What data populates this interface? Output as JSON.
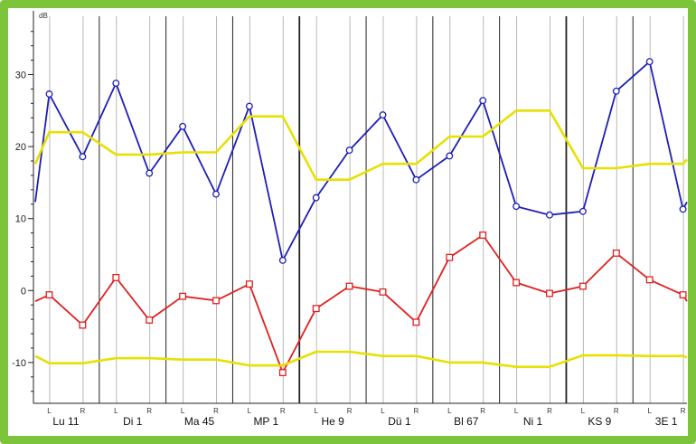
{
  "chart_data": {
    "type": "line",
    "title": "",
    "xlabel": "",
    "ylabel": "dB",
    "ylim": [
      -16,
      36
    ],
    "yticks": [
      -10,
      0,
      10,
      20,
      30
    ],
    "grid": true,
    "legend": "none",
    "categories": [
      "Lu 11",
      "Di 1",
      "Ma 45",
      "MP 1",
      "He 9",
      "Dü 1",
      "Bl 67",
      "Ni 1",
      "KS 9",
      "3E 1"
    ],
    "sub_labels": [
      "L",
      "R"
    ],
    "x": [
      "Lu 11 L",
      "Lu 11 R",
      "Di 1 L",
      "Di 1 R",
      "Ma 45 L",
      "Ma 45 R",
      "MP 1 L",
      "MP 1 R",
      "He 9 L",
      "He 9 R",
      "Dü 1 L",
      "Dü 1 R",
      "Bl 67 L",
      "Bl 67 R",
      "Ni 1 L",
      "Ni 1 R",
      "KS 9 L",
      "KS 9 R",
      "3E 1 L",
      "3E 1 R"
    ],
    "series": [
      {
        "color": "#1f1fb8",
        "marker": "circle",
        "values": [
          27.3,
          18.6,
          28.8,
          16.3,
          22.8,
          13.4,
          25.6,
          4.2,
          12.9,
          19.5,
          24.4,
          15.4,
          18.7,
          26.4,
          11.7,
          10.5,
          11.0,
          27.7,
          31.8,
          11.3
        ],
        "start": 12.3,
        "end": 12.3
      },
      {
        "color": "#e02020",
        "marker": "square",
        "values": [
          -0.6,
          -4.8,
          1.8,
          -4.1,
          -0.8,
          -1.4,
          0.9,
          -11.4,
          -2.5,
          0.6,
          -0.2,
          -4.4,
          4.6,
          7.7,
          1.1,
          -0.4,
          0.6,
          5.2,
          1.5,
          -0.6
        ],
        "start": -1.5,
        "end": -1.5
      },
      {
        "color": "#e8e000",
        "marker": "none",
        "values": [
          22.0,
          22.0,
          18.9,
          18.9,
          19.2,
          19.2,
          24.2,
          24.2,
          15.4,
          15.4,
          17.6,
          17.6,
          21.4,
          21.4,
          25.0,
          25.0,
          17.0,
          17.0,
          17.6,
          17.6
        ],
        "start": 17.6,
        "end": 18.2
      },
      {
        "color": "#e8e000",
        "marker": "none",
        "values": [
          -10.1,
          -10.1,
          -9.4,
          -9.4,
          -9.6,
          -9.6,
          -10.4,
          -10.4,
          -8.5,
          -8.5,
          -9.1,
          -9.1,
          -10.0,
          -10.0,
          -10.6,
          -10.6,
          -9.0,
          -9.0,
          -9.1,
          -9.1
        ],
        "start": -9.1,
        "end": -9.3
      }
    ]
  },
  "colors": {
    "border": "#7cc43a",
    "major_grid": "#222222",
    "minor_grid": "#b8b8b8"
  }
}
